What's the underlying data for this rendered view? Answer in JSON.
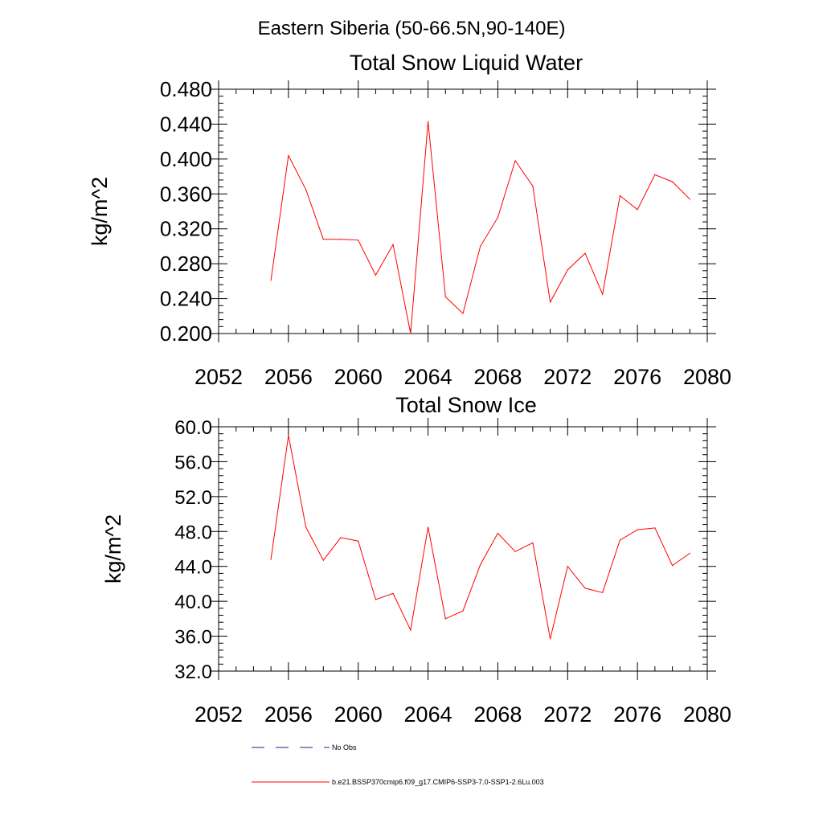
{
  "figure_title": "Eastern Siberia (50-66.5N,90-140E)",
  "colors": {
    "model": "#ff0000",
    "obs": "#1f1f8f",
    "axis": "#000000"
  },
  "legend": {
    "items": [
      {
        "label": "No Obs",
        "style": "dashed",
        "color": "#1f1f8f"
      },
      {
        "label": "b.e21.BSSP370cmip6.f09_g17.CMIP6-SSP3-7.0-SSP1-2.6Lu.003",
        "style": "solid",
        "color": "#ff0000"
      }
    ]
  },
  "chart_data": [
    {
      "type": "line",
      "title": "Total Snow Liquid Water",
      "xlabel": "",
      "ylabel": "kg/m^2",
      "xlim": [
        2052,
        2080
      ],
      "ylim": [
        0.2,
        0.48
      ],
      "xticks": [
        2052,
        2056,
        2060,
        2064,
        2068,
        2072,
        2076,
        2080
      ],
      "xtick_labels": [
        "2052",
        "2056",
        "2060",
        "2064",
        "2068",
        "2072",
        "2076",
        "2080"
      ],
      "yticks": [
        0.2,
        0.24,
        0.28,
        0.32,
        0.36,
        0.4,
        0.44,
        0.48
      ],
      "ytick_labels": [
        "0.200",
        "0.240",
        "0.280",
        "0.320",
        "0.360",
        "0.400",
        "0.440",
        "0.480"
      ],
      "grid": false,
      "series": [
        {
          "name": "b.e21.BSSP370cmip6.f09_g17.CMIP6-SSP3-7.0-SSP1-2.6Lu.003",
          "color": "#ff0000",
          "x": [
            2055,
            2056,
            2057,
            2058,
            2059,
            2060,
            2061,
            2062,
            2063,
            2064,
            2065,
            2066,
            2067,
            2068,
            2069,
            2070,
            2071,
            2072,
            2073,
            2074,
            2075,
            2076,
            2077,
            2078,
            2079
          ],
          "values": [
            0.261,
            0.404,
            0.365,
            0.308,
            0.308,
            0.307,
            0.267,
            0.302,
            0.2,
            0.443,
            0.242,
            0.223,
            0.3,
            0.333,
            0.398,
            0.369,
            0.236,
            0.273,
            0.292,
            0.245,
            0.358,
            0.342,
            0.382,
            0.374,
            0.354
          ]
        }
      ]
    },
    {
      "type": "line",
      "title": "Total Snow Ice",
      "xlabel": "",
      "ylabel": "kg/m^2",
      "xlim": [
        2052,
        2080
      ],
      "ylim": [
        32.0,
        60.0
      ],
      "xticks": [
        2052,
        2056,
        2060,
        2064,
        2068,
        2072,
        2076,
        2080
      ],
      "xtick_labels": [
        "2052",
        "2056",
        "2060",
        "2064",
        "2068",
        "2072",
        "2076",
        "2080"
      ],
      "yticks": [
        32,
        36,
        40,
        44,
        48,
        52,
        56,
        60
      ],
      "ytick_labels": [
        "32.0",
        "36.0",
        "40.0",
        "44.0",
        "48.0",
        "52.0",
        "56.0",
        "60.0"
      ],
      "grid": false,
      "series": [
        {
          "name": "b.e21.BSSP370cmip6.f09_g17.CMIP6-SSP3-7.0-SSP1-2.6Lu.003",
          "color": "#ff0000",
          "x": [
            2055,
            2056,
            2057,
            2058,
            2059,
            2060,
            2061,
            2062,
            2063,
            2064,
            2065,
            2066,
            2067,
            2068,
            2069,
            2070,
            2071,
            2072,
            2073,
            2074,
            2075,
            2076,
            2077,
            2078,
            2079
          ],
          "values": [
            44.8,
            59.0,
            48.5,
            44.7,
            47.3,
            46.9,
            40.2,
            40.9,
            36.7,
            48.5,
            38.0,
            38.9,
            44.2,
            47.8,
            45.7,
            46.7,
            35.7,
            44.0,
            41.5,
            41.0,
            47.0,
            48.2,
            48.4,
            44.1,
            45.5
          ]
        }
      ]
    }
  ]
}
